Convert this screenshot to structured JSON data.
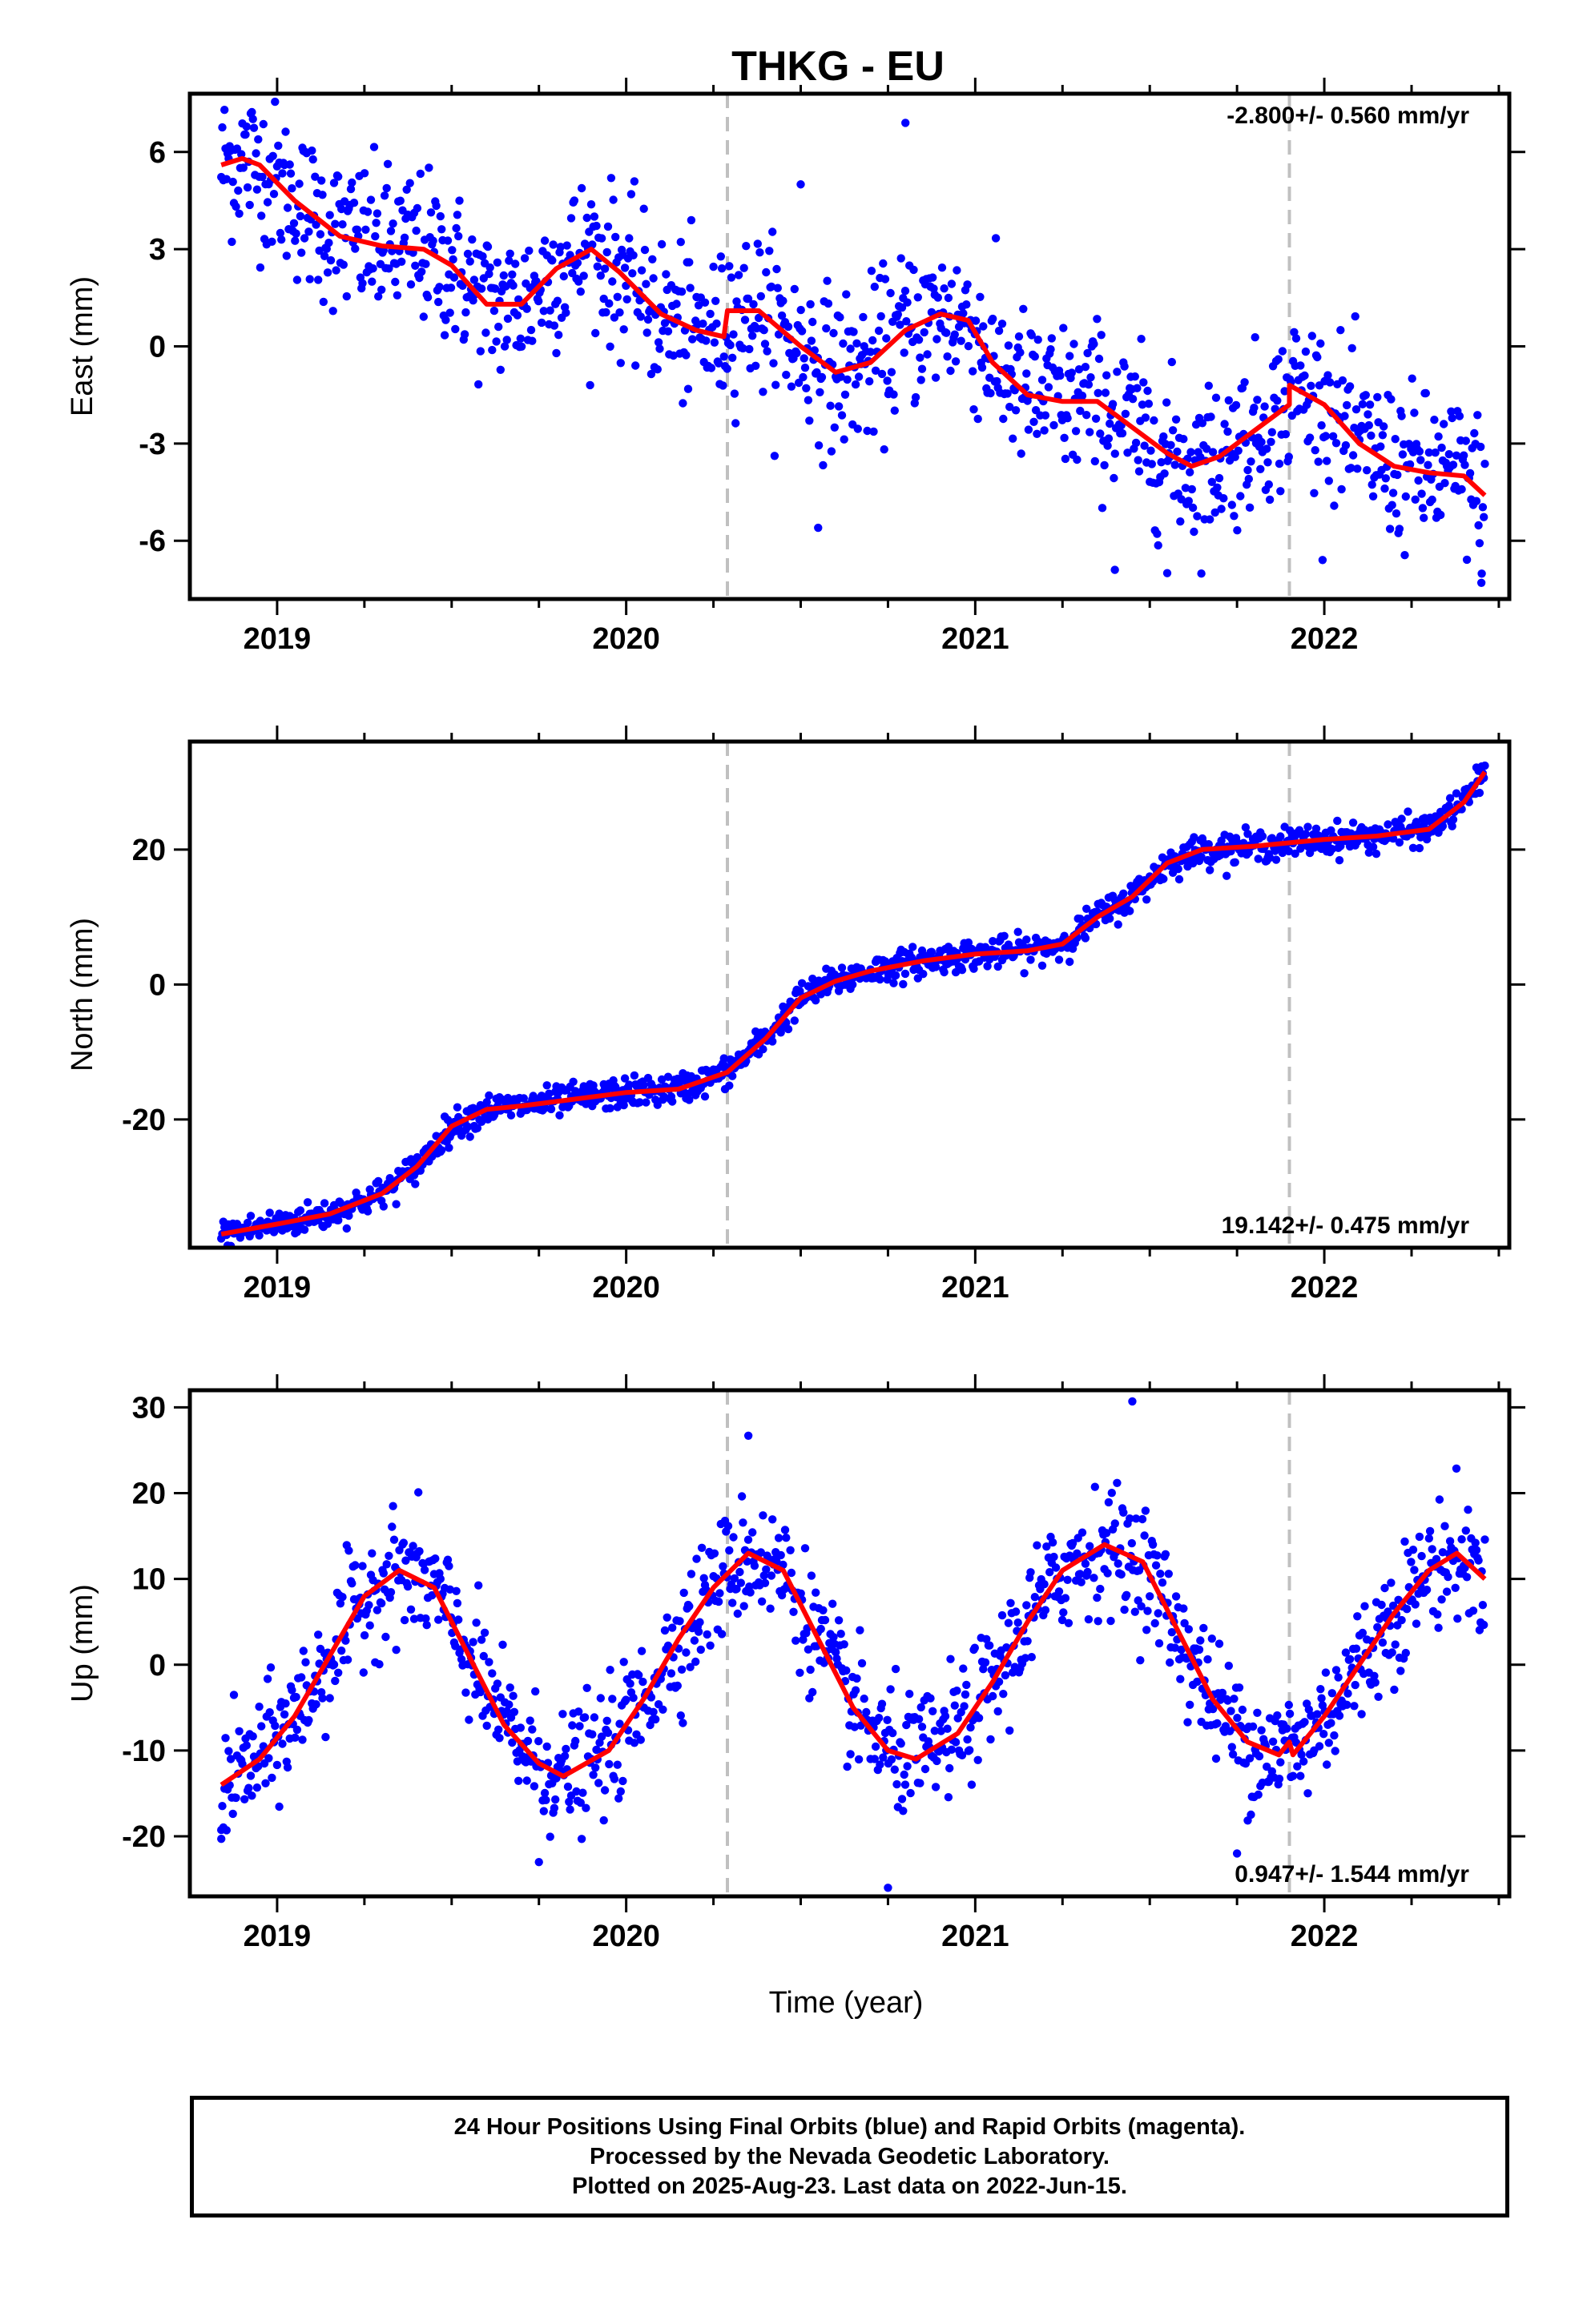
{
  "page_title": "THKG - EU",
  "xlabel": "Time (year)",
  "caption": {
    "line1": "24 Hour Positions Using Final Orbits (blue) and Rapid Orbits (magenta).",
    "line2": "Processed by the Nevada Geodetic Laboratory.",
    "line3": "Plotted on 2025-Aug-23. Last data on 2022-Jun-15."
  },
  "colors": {
    "points": "#0000ff",
    "fit": "#ff0000",
    "events": "#c0c0c0",
    "frame": "#000000"
  },
  "chart_data": [
    {
      "type": "scatter",
      "ylabel": "East (mm)",
      "xlim": [
        2018.75,
        2022.53
      ],
      "ylim": [
        -7.8,
        7.8
      ],
      "xticks": [
        "2019",
        "2020",
        "2021",
        "2022"
      ],
      "yticks": [
        "6",
        "3",
        "0",
        "-3",
        "-6"
      ],
      "rate_label": "-2.800+/- 0.560 mm/yr",
      "rate_position": "top-right",
      "event_lines": [
        2020.29,
        2021.9
      ],
      "fit": {
        "x": [
          2018.84,
          2018.9,
          2018.95,
          2019.05,
          2019.18,
          2019.3,
          2019.42,
          2019.5,
          2019.6,
          2019.7,
          2019.8,
          2019.9,
          2019.98,
          2020.1,
          2020.2,
          2020.28,
          2020.29,
          2020.38,
          2020.5,
          2020.6,
          2020.7,
          2020.8,
          2020.9,
          2020.98,
          2021.05,
          2021.15,
          2021.25,
          2021.35,
          2021.45,
          2021.55,
          2021.62,
          2021.7,
          2021.8,
          2021.9,
          2021.9,
          2022.0,
          2022.1,
          2022.2,
          2022.3,
          2022.4,
          2022.46
        ],
        "y": [
          5.6,
          5.8,
          5.6,
          4.5,
          3.4,
          3.1,
          3.0,
          2.5,
          1.3,
          1.3,
          2.4,
          3.0,
          2.3,
          1.0,
          0.5,
          0.3,
          1.1,
          1.1,
          0.0,
          -0.8,
          -0.5,
          0.5,
          1.0,
          0.8,
          -0.5,
          -1.5,
          -1.7,
          -1.7,
          -2.5,
          -3.3,
          -3.7,
          -3.4,
          -2.6,
          -1.8,
          -1.2,
          -1.8,
          -3.0,
          -3.7,
          -3.9,
          -4.0,
          -4.6
        ]
      },
      "points_summary": {
        "count": 1200,
        "scatter_mm": 1.2,
        "outliers": [
          [
            2020.5,
            5.0
          ],
          [
            2020.8,
            6.9
          ],
          [
            2020.55,
            -5.6
          ],
          [
            2021.4,
            -6.9
          ],
          [
            2021.55,
            -7.0
          ],
          [
            2022.45,
            -7.3
          ]
        ]
      }
    },
    {
      "type": "scatter",
      "ylabel": "North (mm)",
      "xlim": [
        2018.75,
        2022.53
      ],
      "ylim": [
        -39,
        36
      ],
      "xticks": [
        "2019",
        "2020",
        "2021",
        "2022"
      ],
      "yticks": [
        "20",
        "0",
        "-20"
      ],
      "rate_label": "19.142+/- 0.475 mm/yr",
      "rate_position": "bottom-right",
      "event_lines": [
        2020.29,
        2021.9
      ],
      "fit": {
        "x": [
          2018.84,
          2019.0,
          2019.15,
          2019.3,
          2019.4,
          2019.5,
          2019.6,
          2019.7,
          2019.85,
          2020.0,
          2020.15,
          2020.29,
          2020.4,
          2020.5,
          2020.6,
          2020.7,
          2020.85,
          2021.0,
          2021.15,
          2021.25,
          2021.35,
          2021.45,
          2021.55,
          2021.65,
          2021.8,
          2021.9,
          2022.0,
          2022.15,
          2022.3,
          2022.4,
          2022.46
        ],
        "y": [
          -37,
          -35.5,
          -34,
          -31,
          -27,
          -21,
          -18.5,
          -18,
          -17,
          -16,
          -15.5,
          -13,
          -8,
          -2,
          0.5,
          2,
          3.5,
          4.5,
          5,
          6,
          10,
          13,
          18,
          20,
          20.5,
          21,
          21.5,
          22,
          23,
          27,
          31.5
        ]
      },
      "points_summary": {
        "count": 1200,
        "scatter_mm": 1.1,
        "outliers": []
      }
    },
    {
      "type": "scatter",
      "ylabel": "Up (mm)",
      "xlim": [
        2018.75,
        2022.53
      ],
      "ylim": [
        -27,
        32
      ],
      "xticks": [
        "2019",
        "2020",
        "2021",
        "2022"
      ],
      "yticks": [
        "30",
        "20",
        "10",
        "0",
        "-10",
        "-20"
      ],
      "rate_label": "0.947+/- 1.544 mm/yr",
      "rate_position": "bottom-right",
      "event_lines": [
        2020.29,
        2021.9
      ],
      "fit": {
        "x": [
          2018.84,
          2018.95,
          2019.05,
          2019.15,
          2019.25,
          2019.35,
          2019.45,
          2019.55,
          2019.65,
          2019.75,
          2019.82,
          2019.95,
          2020.05,
          2020.15,
          2020.25,
          2020.35,
          2020.45,
          2020.55,
          2020.65,
          2020.75,
          2020.83,
          2020.95,
          2021.05,
          2021.15,
          2021.25,
          2021.37,
          2021.48,
          2021.58,
          2021.68,
          2021.78,
          2021.87,
          2021.9,
          2021.91,
          2022.0,
          2022.1,
          2022.2,
          2022.3,
          2022.38,
          2022.46
        ],
        "y": [
          -14,
          -11,
          -6,
          1,
          8,
          11,
          9,
          1,
          -7,
          -11.5,
          -13,
          -10,
          -4,
          3,
          9,
          13,
          11,
          3,
          -5,
          -10,
          -11,
          -8,
          -2,
          5,
          11,
          14,
          12,
          4,
          -4,
          -9,
          -10.5,
          -9,
          -10.5,
          -6,
          0,
          6,
          11,
          13,
          10
        ]
      },
      "points_summary": {
        "count": 1200,
        "scatter_mm": 3.5,
        "outliers": [
          [
            2021.45,
            30.7
          ],
          [
            2020.35,
            26.7
          ],
          [
            2020.75,
            -26
          ],
          [
            2019.75,
            -23
          ],
          [
            2021.75,
            -22
          ],
          [
            2018.84,
            -20.3
          ]
        ]
      }
    }
  ]
}
